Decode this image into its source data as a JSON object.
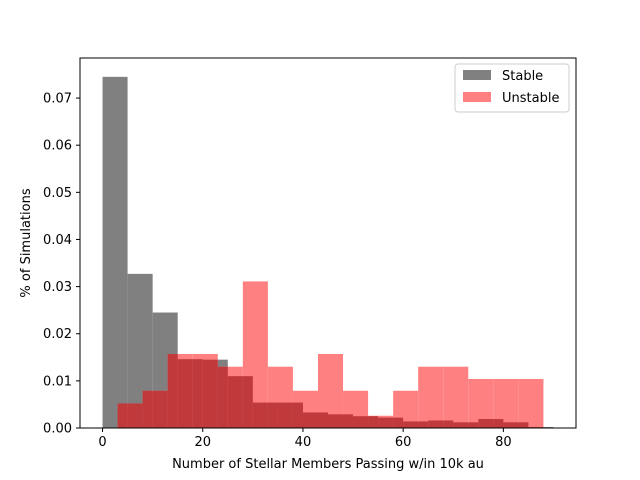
{
  "chart_data": {
    "type": "bar",
    "title": "",
    "xlabel": "Number of Stellar Members Passing w/in 10k au",
    "ylabel": "% of Simulations",
    "xlim": [
      -4.5,
      94.5
    ],
    "ylim": [
      0,
      0.0785
    ],
    "xticks": [
      "0",
      "20",
      "40",
      "60",
      "80"
    ],
    "xtick_values": [
      0,
      20,
      40,
      60,
      80
    ],
    "yticks": [
      "0.00",
      "0.01",
      "0.02",
      "0.03",
      "0.04",
      "0.05",
      "0.06",
      "0.07"
    ],
    "ytick_values": [
      0,
      0.01,
      0.02,
      0.03,
      0.04,
      0.05,
      0.06,
      0.07
    ],
    "legend_position": "top-right",
    "series": [
      {
        "name": "Stable",
        "color": "#808080",
        "bin_edges": [
          0,
          5,
          10,
          15,
          20,
          25,
          30,
          35,
          40,
          45,
          50,
          55,
          60,
          65,
          70,
          75,
          80,
          85,
          90
        ],
        "values": [
          0.0745,
          0.0327,
          0.0245,
          0.0146,
          0.0145,
          0.011,
          0.0054,
          0.0054,
          0.0033,
          0.0029,
          0.0025,
          0.0022,
          0.0014,
          0.0016,
          0.0012,
          0.0019,
          0.0012,
          0.0002
        ]
      },
      {
        "name": "Unstable",
        "color": "#ff8080",
        "overlap_color": "#c0393b",
        "bin_edges": [
          3,
          8,
          13,
          18,
          23,
          28,
          33,
          38,
          43,
          48,
          53,
          58,
          63,
          68,
          73,
          78,
          83,
          88
        ],
        "values": [
          0.0052,
          0.0079,
          0.0157,
          0.0157,
          0.013,
          0.0311,
          0.013,
          0.0079,
          0.0157,
          0.0079,
          0.0026,
          0.0079,
          0.013,
          0.013,
          0.0104,
          0.0104,
          0.0104
        ]
      }
    ]
  }
}
